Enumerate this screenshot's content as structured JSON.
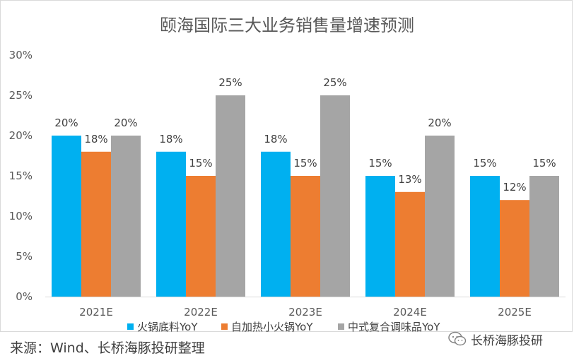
{
  "chart_data": {
    "type": "bar",
    "title": "颐海国际三大业务销售量增速预测",
    "categories": [
      "2021E",
      "2022E",
      "2023E",
      "2024E",
      "2025E"
    ],
    "series": [
      {
        "name": "火锅底料YoY",
        "color": "#00b0f0",
        "values": [
          20,
          18,
          18,
          15,
          15
        ],
        "labels": [
          "20%",
          "18%",
          "18%",
          "15%",
          "15%"
        ]
      },
      {
        "name": "自加热小火锅YoY",
        "color": "#ed7d31",
        "values": [
          18,
          15,
          15,
          13,
          12
        ],
        "labels": [
          "18%",
          "15%",
          "15%",
          "13%",
          "12%"
        ]
      },
      {
        "name": "中式复合调味品YoY",
        "color": "#a5a5a5",
        "values": [
          20,
          25,
          25,
          20,
          15
        ],
        "labels": [
          "20%",
          "25%",
          "25%",
          "20%",
          "15%"
        ]
      }
    ],
    "yticks": [
      "0%",
      "5%",
      "10%",
      "15%",
      "20%",
      "25%",
      "30%"
    ],
    "ylim": [
      0,
      30
    ],
    "ylabel": "",
    "xlabel": "",
    "grid": false,
    "legend_position": "bottom"
  },
  "footer": {
    "source": "来源：Wind、长桥海豚投研整理",
    "brand": "长桥海豚投研"
  },
  "icons": {
    "brand": "wechat-icon"
  }
}
